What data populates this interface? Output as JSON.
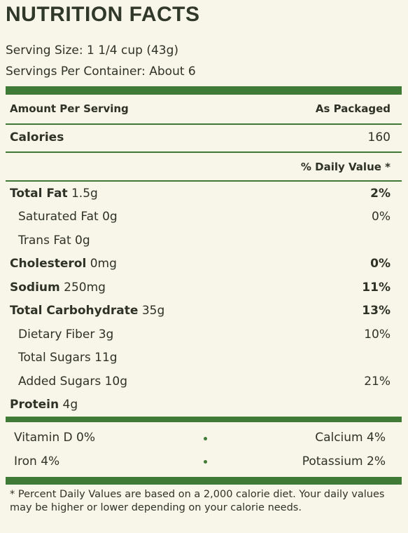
{
  "title": "NUTRITION FACTS",
  "serving_size": "Serving Size: 1 1/4 cup (43g)",
  "servings_per_container": "Servings Per Container: About 6",
  "header": {
    "amount_label": "Amount Per Serving",
    "column_label": "As Packaged"
  },
  "calories": {
    "label": "Calories",
    "value": "160"
  },
  "daily_value_header": "% Daily Value *",
  "nutrients": [
    {
      "name": "Total Fat",
      "amount": "1.5g",
      "dv": "2%"
    },
    {
      "name": "Saturated Fat",
      "amount": "0g",
      "dv": "0%"
    },
    {
      "name": "Trans Fat",
      "amount": "0g",
      "dv": ""
    },
    {
      "name": "Cholesterol",
      "amount": "0mg",
      "dv": "0%"
    },
    {
      "name": "Sodium",
      "amount": "250mg",
      "dv": "11%"
    },
    {
      "name": "Total Carbohydrate",
      "amount": "35g",
      "dv": "13%"
    },
    {
      "name": "Dietary Fiber",
      "amount": "3g",
      "dv": "10%"
    },
    {
      "name": "Total Sugars",
      "amount": "11g",
      "dv": ""
    },
    {
      "name": "Added Sugars",
      "amount": "10g",
      "dv": "21%"
    },
    {
      "name": "Protein",
      "amount": "4g",
      "dv": ""
    }
  ],
  "vitamins": [
    {
      "left": "Vitamin D  0%",
      "right": "Calcium  4%"
    },
    {
      "left": "Iron  4%",
      "right": "Potassium  2%"
    }
  ],
  "footnote": "* Percent Daily Values are based on a 2,000 calorie diet. Your daily values may be higher or lower depending on your calorie needs.",
  "colors": {
    "accent": "#3f7a36",
    "background": "#f8f5e9",
    "text": "#2f3226"
  }
}
